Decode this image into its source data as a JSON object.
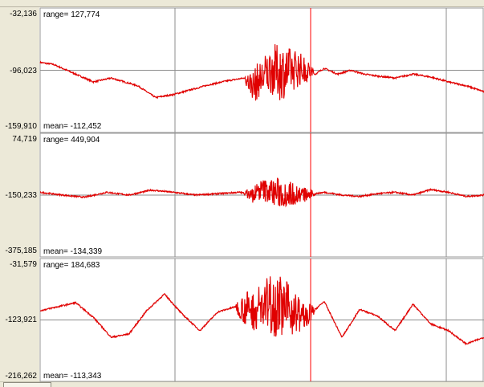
{
  "chart_data": [
    {
      "type": "line",
      "title": "",
      "y_ticks": {
        "top": "-32,136",
        "mid": "-96,023",
        "bottom": "-159,910"
      },
      "ylim": [
        -159910,
        -32136
      ],
      "range_label": "range= 127,774",
      "mean_label": "mean= -112,452",
      "color": "#e00000",
      "x": [
        0,
        0.03,
        0.08,
        0.12,
        0.16,
        0.22,
        0.26,
        0.3,
        0.34,
        0.38,
        0.42,
        0.46,
        0.48,
        0.5,
        0.52,
        0.54,
        0.56,
        0.58,
        0.6,
        0.62,
        0.64,
        0.67,
        0.7,
        0.73,
        0.76,
        0.8,
        0.84,
        0.88,
        0.92,
        0.96,
        1.0
      ],
      "y": [
        -88000,
        -90000,
        -100000,
        -108000,
        -104000,
        -112000,
        -124000,
        -121000,
        -116000,
        -111000,
        -107000,
        -104000,
        -112000,
        -104000,
        -96000,
        -98000,
        -97000,
        -94000,
        -96000,
        -100000,
        -94000,
        -100000,
        -96000,
        -100000,
        -102000,
        -104000,
        -100000,
        -103000,
        -108000,
        -112000,
        -118000
      ],
      "burst": {
        "x_start": 0.46,
        "x_end": 0.62,
        "amplitude": 36000
      }
    },
    {
      "type": "line",
      "title": "",
      "y_ticks": {
        "top": "74,719",
        "mid": "-150,233",
        "bottom": "-375,185"
      },
      "ylim": [
        -375185,
        74719
      ],
      "range_label": "range= 449,904",
      "mean_label": "mean= -134,339",
      "color": "#e00000",
      "x": [
        0,
        0.05,
        0.1,
        0.15,
        0.2,
        0.25,
        0.3,
        0.35,
        0.4,
        0.45,
        0.48,
        0.5,
        0.53,
        0.56,
        0.6,
        0.64,
        0.68,
        0.72,
        0.76,
        0.8,
        0.84,
        0.88,
        0.92,
        0.96,
        1.0
      ],
      "y": [
        -140000,
        -150000,
        -158000,
        -140000,
        -150000,
        -132000,
        -140000,
        -150000,
        -145000,
        -140000,
        -150000,
        -130000,
        -140000,
        -145000,
        -150000,
        -140000,
        -150000,
        -155000,
        -145000,
        -140000,
        -150000,
        -130000,
        -140000,
        -155000,
        -150000
      ],
      "burst": {
        "x_start": 0.46,
        "x_end": 0.62,
        "amplitude": 70000
      }
    },
    {
      "type": "line",
      "title": "",
      "y_ticks": {
        "top": "-31,579",
        "mid": "-123,921",
        "bottom": "-216,262"
      },
      "ylim": [
        -216262,
        -31579
      ],
      "range_label": "range= 184,683",
      "mean_label": "mean= -113,343",
      "color": "#e00000",
      "x": [
        0,
        0.04,
        0.08,
        0.12,
        0.16,
        0.2,
        0.24,
        0.28,
        0.32,
        0.36,
        0.4,
        0.44,
        0.48,
        0.52,
        0.56,
        0.6,
        0.64,
        0.68,
        0.72,
        0.76,
        0.8,
        0.84,
        0.88,
        0.92,
        0.96,
        1.0
      ],
      "y": [
        -110000,
        -104000,
        -98000,
        -120000,
        -150000,
        -145000,
        -110000,
        -85000,
        -115000,
        -140000,
        -112000,
        -104000,
        -110000,
        -98000,
        -108000,
        -120000,
        -96000,
        -150000,
        -108000,
        -118000,
        -140000,
        -100000,
        -130000,
        -140000,
        -160000,
        -150000
      ],
      "burst": {
        "x_start": 0.44,
        "x_end": 0.62,
        "amplitude": 60000
      }
    }
  ]
}
